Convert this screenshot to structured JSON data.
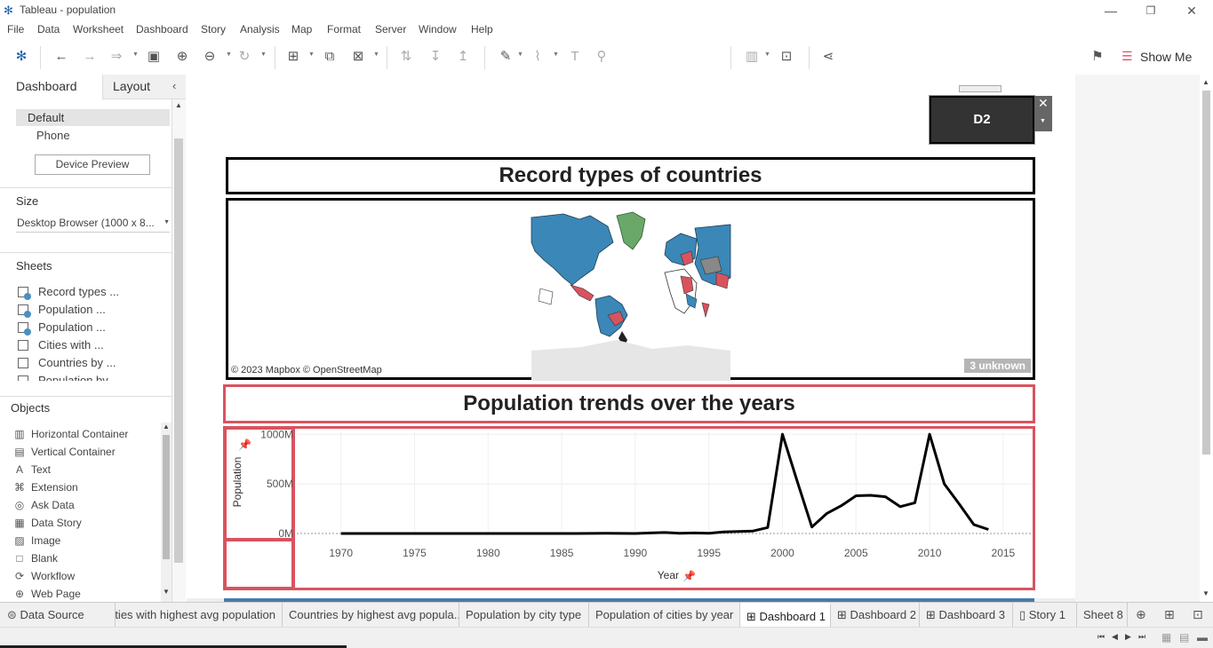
{
  "window": {
    "title": "Tableau - population"
  },
  "menu": [
    "File",
    "Data",
    "Worksheet",
    "Dashboard",
    "Story",
    "Analysis",
    "Map",
    "Format",
    "Server",
    "Window",
    "Help"
  ],
  "toolbar": {
    "show_me": "Show Me"
  },
  "left_panel": {
    "tabs": {
      "dashboard": "Dashboard",
      "layout": "Layout"
    },
    "device": {
      "default": "Default",
      "phone": "Phone",
      "preview_button": "Device Preview"
    },
    "size": {
      "header": "Size",
      "value": "Desktop Browser (1000 x 8..."
    },
    "sheets": {
      "header": "Sheets",
      "items": [
        "Record types ...",
        "Population ...",
        "Population ...",
        "Cities with ...",
        "Countries by ...",
        "Population by..."
      ]
    },
    "objects": {
      "header": "Objects",
      "items": [
        {
          "label": "Horizontal Container",
          "icon": "horizontal-container-icon"
        },
        {
          "label": "Vertical Container",
          "icon": "vertical-container-icon"
        },
        {
          "label": "Text",
          "icon": "text-icon"
        },
        {
          "label": "Extension",
          "icon": "extension-icon"
        },
        {
          "label": "Ask Data",
          "icon": "ask-data-icon"
        },
        {
          "label": "Data Story",
          "icon": "data-story-icon"
        },
        {
          "label": "Image",
          "icon": "image-icon"
        },
        {
          "label": "Blank",
          "icon": "blank-icon"
        },
        {
          "label": "Workflow",
          "icon": "workflow-icon"
        },
        {
          "label": "Web Page",
          "icon": "web-page-icon"
        }
      ]
    }
  },
  "dashboard": {
    "floating_label": "D2",
    "title1": "Record types of countries",
    "map": {
      "attribution": "© 2023 Mapbox © OpenStreetMap",
      "unknown_badge": "3 unknown"
    },
    "title2": "Population trends over the years"
  },
  "chart_data": {
    "type": "line",
    "ylabel": "Population",
    "xlabel": "Year",
    "y_ticks": [
      "0M",
      "500M",
      "1000M"
    ],
    "x_ticks": [
      "1970",
      "1975",
      "1980",
      "1985",
      "1990",
      "1995",
      "2000",
      "2005",
      "2010",
      "2015"
    ],
    "xlim": [
      1967,
      2017
    ],
    "ylim": [
      0,
      1020
    ],
    "x": [
      1970,
      1972,
      1974,
      1976,
      1978,
      1980,
      1982,
      1984,
      1986,
      1988,
      1990,
      1991,
      1992,
      1993,
      1994,
      1995,
      1996,
      1997,
      1998,
      1999,
      2000,
      2001,
      2002,
      2003,
      2004,
      2005,
      2006,
      2007,
      2008,
      2009,
      2010,
      2011,
      2012,
      2013,
      2014
    ],
    "y": [
      0,
      0,
      0,
      0,
      0,
      0,
      0,
      0,
      0,
      2,
      0,
      5,
      10,
      3,
      5,
      3,
      15,
      20,
      25,
      60,
      1000,
      530,
      65,
      200,
      280,
      380,
      385,
      370,
      270,
      310,
      1000,
      500,
      300,
      90,
      40
    ]
  },
  "bottom_tabs": [
    "Data Source",
    "Cities with highest avg population",
    "Countries by highest avg popula...",
    "Population by city type",
    "Population of cities by year",
    "Dashboard 1",
    "Dashboard 2",
    "Dashboard 3",
    "Story 1",
    "Sheet 8"
  ],
  "active_tab": "Dashboard 1"
}
